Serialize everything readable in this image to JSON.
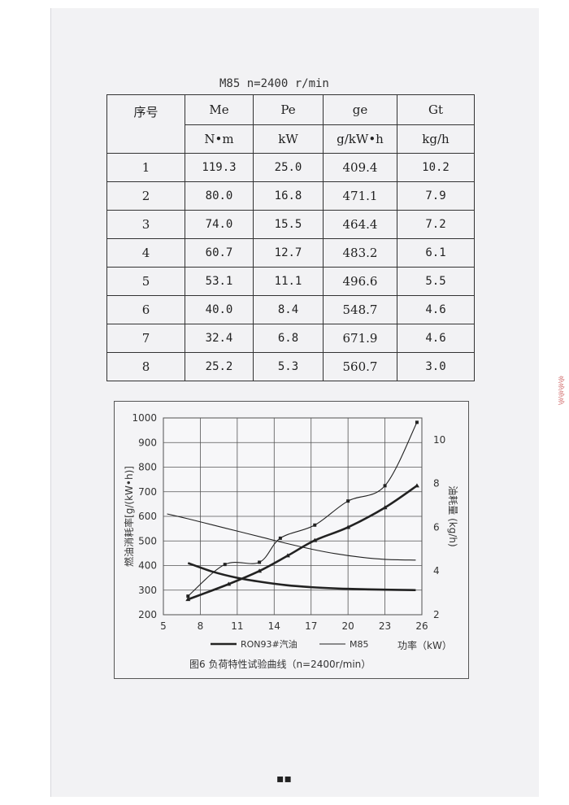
{
  "table": {
    "caption": "M85 n=2400 r/min",
    "headers": [
      "序号",
      "Me",
      "Pe",
      "ge",
      "Gt"
    ],
    "units": [
      "N•m",
      "kW",
      "g/kW•h",
      "kg/h"
    ],
    "rows": [
      [
        "1",
        "119.3",
        "25.0",
        "409.4",
        "10.2"
      ],
      [
        "2",
        "80.0",
        "16.8",
        "471.1",
        "7.9"
      ],
      [
        "3",
        "74.0",
        "15.5",
        "464.4",
        "7.2"
      ],
      [
        "4",
        "60.7",
        "12.7",
        "483.2",
        "6.1"
      ],
      [
        "5",
        "53.1",
        "11.1",
        "496.6",
        "5.5"
      ],
      [
        "6",
        "40.0",
        "8.4",
        "548.7",
        "4.6"
      ],
      [
        "7",
        "32.4",
        "6.8",
        "671.9",
        "4.6"
      ],
      [
        "8",
        "25.2",
        "5.3",
        "560.7",
        "3.0"
      ]
    ]
  },
  "chart_data": {
    "type": "line",
    "caption": "图6 负荷特性试验曲线（n=2400r/min）",
    "xlabel": "功率（kW）",
    "ylabel_left": "燃油消耗率[g/(kW•h)]",
    "ylabel_right": "油耗量 (kg/h)",
    "xlim": [
      5,
      26
    ],
    "xticks": [
      5,
      8,
      11,
      14,
      17,
      20,
      23,
      26
    ],
    "ylim_left": [
      200,
      1000
    ],
    "yticks_left": [
      200,
      300,
      400,
      500,
      600,
      700,
      800,
      900,
      1000
    ],
    "ylim_right": [
      2,
      11
    ],
    "yticks_right": [
      2,
      4,
      6,
      8,
      10
    ],
    "grid": true,
    "legend_position": "bottom",
    "legend": [
      "RON93#汽油",
      "M85"
    ],
    "series": [
      {
        "name": "RON93#汽油",
        "axis": "left",
        "style": "thick",
        "marker": "none",
        "x": [
          7,
          9,
          11,
          13,
          15,
          17,
          19,
          21,
          23,
          25.5
        ],
        "y": [
          410,
          375,
          350,
          333,
          320,
          312,
          307,
          304,
          302,
          300
        ]
      },
      {
        "name": "M85",
        "axis": "left",
        "style": "thin",
        "marker": "none",
        "x": [
          5.3,
          7,
          9,
          11,
          13,
          15,
          17,
          19,
          21,
          23,
          25.5
        ],
        "y": [
          610,
          590,
          565,
          540,
          515,
          490,
          467,
          448,
          434,
          425,
          422
        ]
      },
      {
        "name": "RON93#汽油",
        "axis": "right",
        "style": "thick",
        "marker": "triangle",
        "x": [
          7,
          10.3,
          12.8,
          15.1,
          17.3,
          20,
          23,
          25.6
        ],
        "y": [
          2.7,
          3.4,
          4.0,
          4.7,
          5.4,
          6.0,
          6.9,
          7.9
        ]
      },
      {
        "name": "M85",
        "axis": "right",
        "style": "thin",
        "marker": "square",
        "x": [
          7,
          10,
          12.8,
          14.5,
          17.3,
          20,
          23,
          25.6
        ],
        "y": [
          2.85,
          4.3,
          4.4,
          5.5,
          6.1,
          7.2,
          7.9,
          10.8
        ]
      }
    ]
  },
  "page_marker": "▪▪",
  "stamp_text": "多多多多"
}
